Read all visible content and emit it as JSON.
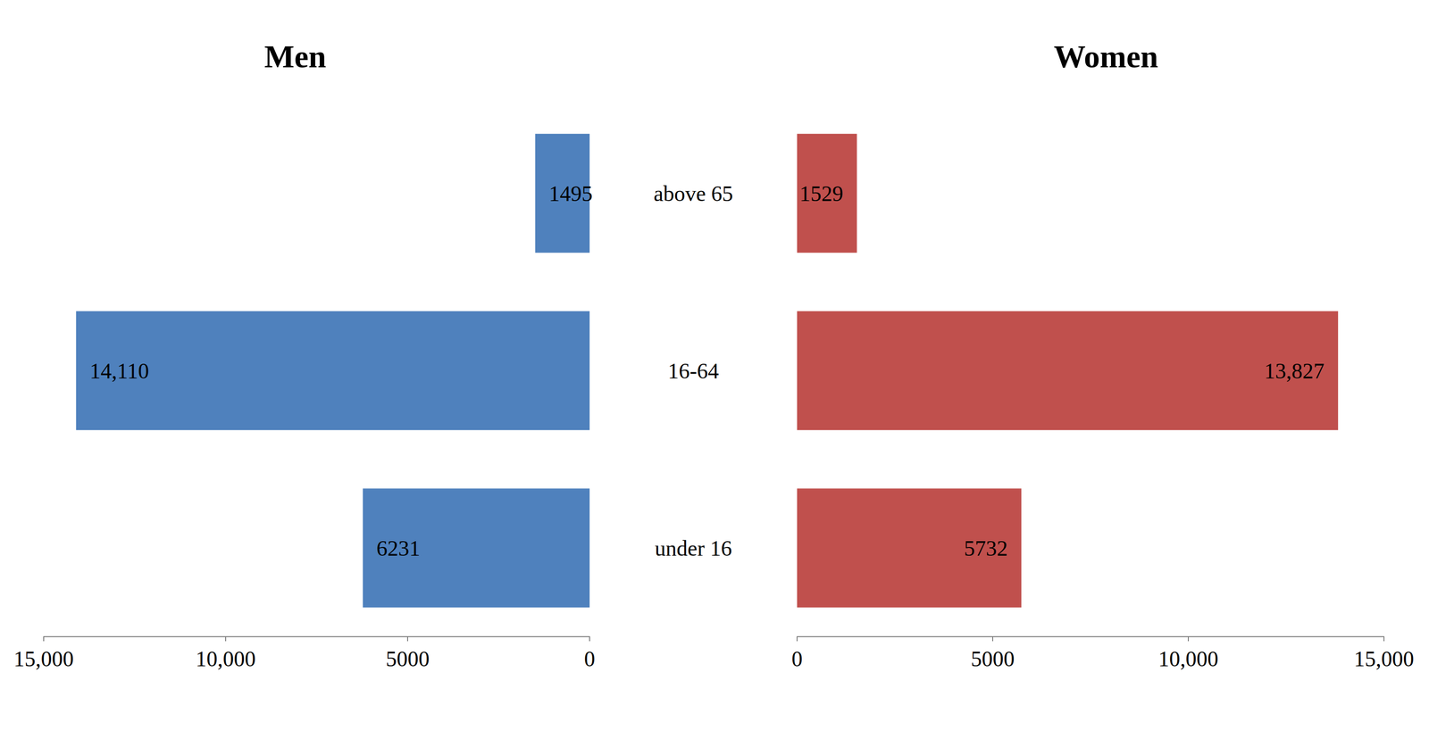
{
  "chart_data": {
    "type": "bar",
    "orientation": "horizontal",
    "categories": [
      "under 16",
      "16-64",
      "above 65"
    ],
    "series": [
      {
        "name": "Men",
        "color": "#4f81bd",
        "values": [
          6231,
          14110,
          1495
        ],
        "value_labels": [
          "6231",
          "14,110",
          "1495"
        ]
      },
      {
        "name": "Women",
        "color": "#c0504d",
        "values": [
          5732,
          13827,
          1529
        ],
        "value_labels": [
          "5732",
          "13,827",
          "1529"
        ]
      }
    ],
    "xlim": [
      0,
      15000
    ],
    "xticks": [
      0,
      5000,
      {
        "value": 10000,
        "label": "10,000"
      },
      {
        "value": 15000,
        "label": "15,000"
      }
    ],
    "data_labels": true,
    "grid": false
  }
}
